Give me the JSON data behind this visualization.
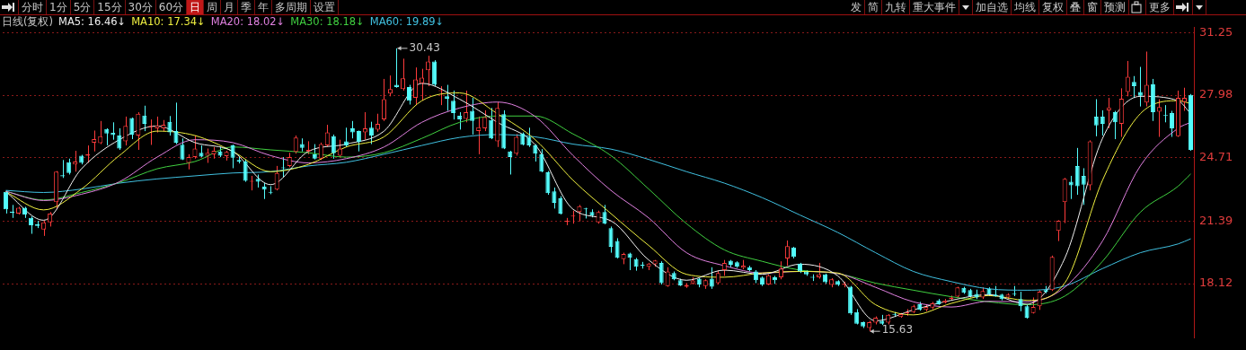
{
  "chart_data": {
    "type": "candlestick",
    "title": "日线(复权)",
    "categories": [
      null,
      null,
      null,
      null,
      null,
      null,
      null,
      null,
      null,
      null,
      null,
      null,
      null,
      null,
      null,
      null,
      null,
      null,
      null,
      null,
      null,
      null,
      null,
      null,
      null,
      null,
      null,
      null,
      null,
      null,
      null,
      null,
      null,
      null,
      null,
      null,
      null,
      null,
      null,
      null,
      null,
      null,
      null,
      null,
      null,
      null,
      null,
      null,
      null,
      null,
      null,
      null,
      null,
      null,
      null,
      null,
      null,
      null,
      null,
      null,
      null,
      null,
      null,
      null,
      null,
      null,
      null,
      null,
      null,
      null,
      null,
      null,
      null,
      null,
      null,
      null,
      null,
      null,
      null,
      null,
      null,
      null,
      null,
      null,
      null,
      null,
      null,
      null,
      null,
      null,
      null,
      null,
      null,
      null,
      null,
      null,
      null,
      null,
      null,
      null,
      null,
      null,
      null,
      null,
      null,
      null,
      null,
      null,
      null,
      null,
      null,
      null,
      null,
      null,
      null,
      null,
      null,
      null,
      null,
      null,
      null,
      null,
      null,
      null,
      null,
      null,
      null,
      null,
      null,
      null,
      null,
      null,
      null,
      null,
      null,
      null,
      null,
      null,
      null,
      null,
      null,
      null,
      null,
      null,
      null,
      null,
      null,
      null,
      null,
      null,
      null,
      null,
      null,
      null,
      null,
      null,
      null,
      null,
      null,
      null,
      null,
      null,
      null,
      null,
      null,
      null,
      null,
      null,
      null,
      null,
      null,
      null,
      null,
      null,
      null,
      null,
      null,
      null,
      null,
      null,
      null,
      null,
      null,
      null,
      null,
      null,
      null,
      null,
      null
    ],
    "ohlc": [
      [
        22.92,
        23.0,
        21.79,
        22.01
      ],
      [
        21.89,
        22.24,
        21.56,
        21.83
      ],
      [
        21.79,
        22.14,
        21.74,
        22.09
      ],
      [
        22.09,
        22.14,
        21.56,
        21.74
      ],
      [
        21.56,
        21.64,
        20.73,
        21.18
      ],
      [
        21.23,
        21.41,
        21.03,
        21.14
      ],
      [
        20.95,
        21.41,
        20.62,
        21.33
      ],
      [
        21.33,
        21.87,
        21.11,
        21.79
      ],
      [
        22.39,
        24.01,
        22.01,
        23.98
      ],
      [
        23.79,
        24.59,
        23.65,
        23.73
      ],
      [
        24.47,
        24.66,
        23.83,
        23.91
      ],
      [
        24.36,
        25.07,
        23.98,
        24.51
      ],
      [
        24.82,
        24.86,
        24.36,
        24.44
      ],
      [
        24.82,
        25.35,
        24.44,
        24.89
      ],
      [
        25.5,
        26.13,
        25.04,
        25.68
      ],
      [
        25.47,
        26.63,
        25.42,
        25.83
      ],
      [
        26.21,
        26.25,
        25.35,
        25.98
      ],
      [
        26.01,
        26.56,
        25.65,
        25.89
      ],
      [
        25.87,
        26.25,
        25.12,
        25.19
      ],
      [
        25.57,
        26.86,
        25.35,
        26.37
      ],
      [
        26.78,
        26.81,
        25.68,
        25.92
      ],
      [
        25.87,
        27.09,
        25.12,
        27.01
      ],
      [
        26.92,
        27.43,
        26.1,
        26.48
      ],
      [
        26.31,
        26.71,
        25.38,
        26.37
      ],
      [
        26.25,
        26.86,
        26.03,
        26.4
      ],
      [
        26.25,
        26.68,
        26.1,
        26.43
      ],
      [
        26.59,
        26.89,
        25.87,
        26.03
      ],
      [
        26.1,
        27.59,
        25.42,
        25.5
      ],
      [
        25.39,
        25.72,
        24.59,
        24.62
      ],
      [
        24.44,
        24.89,
        24.1,
        24.74
      ],
      [
        24.74,
        25.87,
        24.66,
        25.19
      ],
      [
        24.97,
        25.35,
        24.74,
        24.77
      ],
      [
        24.82,
        25.19,
        24.44,
        24.97
      ],
      [
        24.89,
        25.27,
        24.66,
        25.07
      ],
      [
        25.04,
        25.27,
        24.74,
        24.82
      ],
      [
        24.79,
        25.07,
        24.56,
        25.01
      ],
      [
        25.35,
        25.39,
        24.16,
        24.71
      ],
      [
        24.59,
        24.74,
        24.41,
        24.51
      ],
      [
        24.51,
        24.62,
        23.45,
        23.5
      ],
      [
        23.45,
        23.76,
        23.0,
        23.5
      ],
      [
        23.6,
        23.83,
        23.15,
        23.45
      ],
      [
        23.2,
        23.38,
        22.55,
        23.04
      ],
      [
        22.92,
        23.22,
        22.8,
        22.88
      ],
      [
        23.04,
        24.28,
        23.0,
        23.91
      ],
      [
        24.21,
        24.74,
        23.68,
        24.16
      ],
      [
        24.28,
        24.97,
        24.21,
        24.74
      ],
      [
        25.01,
        25.87,
        24.92,
        25.77
      ],
      [
        25.42,
        25.72,
        25.04,
        25.22
      ],
      [
        25.04,
        25.57,
        24.89,
        25.12
      ],
      [
        24.89,
        25.42,
        24.62,
        24.66
      ],
      [
        24.66,
        25.5,
        24.59,
        25.42
      ],
      [
        25.35,
        26.43,
        25.27,
        26.03
      ],
      [
        25.83,
        25.92,
        24.66,
        24.94
      ],
      [
        24.82,
        25.65,
        24.74,
        25.19
      ],
      [
        25.57,
        26.28,
        25.27,
        25.35
      ],
      [
        26.25,
        26.63,
        25.72,
        26.03
      ],
      [
        26.1,
        26.13,
        25.04,
        25.53
      ],
      [
        26.03,
        27.09,
        25.65,
        26.25
      ],
      [
        26.28,
        26.59,
        25.42,
        25.87
      ],
      [
        26.18,
        27.01,
        26.07,
        26.48
      ],
      [
        26.71,
        28.83,
        26.63,
        27.77
      ],
      [
        28.07,
        29.01,
        27.92,
        28.3
      ],
      [
        28.52,
        30.43,
        28.37,
        28.4
      ],
      [
        28.3,
        29.89,
        28.22,
        28.86
      ],
      [
        28.4,
        28.52,
        27.49,
        27.69
      ],
      [
        27.84,
        29.43,
        27.46,
        28.8
      ],
      [
        28.6,
        29.36,
        27.69,
        28.9
      ],
      [
        29.28,
        30.04,
        28.45,
        29.74
      ],
      [
        29.74,
        29.81,
        28.45,
        28.52
      ],
      [
        28.19,
        28.45,
        27.46,
        28.22
      ],
      [
        27.92,
        28.52,
        27.16,
        27.8
      ],
      [
        27.69,
        28.22,
        26.71,
        27.04
      ],
      [
        26.9,
        27.09,
        26.18,
        26.71
      ],
      [
        26.74,
        28.22,
        26.56,
        27.09
      ],
      [
        27.16,
        27.84,
        25.92,
        26.63
      ],
      [
        26.1,
        26.86,
        24.89,
        26.3
      ],
      [
        26.25,
        27.19,
        26.1,
        26.83
      ],
      [
        26.68,
        27.31,
        25.68,
        25.72
      ],
      [
        25.57,
        27.62,
        25.27,
        27.31
      ],
      [
        26.98,
        27.19,
        25.16,
        25.19
      ],
      [
        25.04,
        25.07,
        23.83,
        24.74
      ],
      [
        24.92,
        25.95,
        24.82,
        25.8
      ],
      [
        25.98,
        26.03,
        25.35,
        25.39
      ],
      [
        25.8,
        26.28,
        25.27,
        25.35
      ],
      [
        25.35,
        25.42,
        24.51,
        24.92
      ],
      [
        24.89,
        25.16,
        23.95,
        23.98
      ],
      [
        23.95,
        24.01,
        22.77,
        22.85
      ],
      [
        22.95,
        23.15,
        22.05,
        22.35
      ],
      [
        22.59,
        22.7,
        21.74,
        21.79
      ],
      [
        21.35,
        21.56,
        21.18,
        21.41
      ],
      [
        21.64,
        21.94,
        21.26,
        21.68
      ],
      [
        21.87,
        22.24,
        21.38,
        22.17
      ],
      [
        22.06,
        22.09,
        21.53,
        22.01
      ],
      [
        21.87,
        22.01,
        21.59,
        21.68
      ],
      [
        21.33,
        21.94,
        21.26,
        21.87
      ],
      [
        21.87,
        22.24,
        21.23,
        21.26
      ],
      [
        21.03,
        21.11,
        19.74,
        20.05
      ],
      [
        20.35,
        20.5,
        19.44,
        19.47
      ],
      [
        19.41,
        19.74,
        19.14,
        19.67
      ],
      [
        19.7,
        19.74,
        18.83,
        19.47
      ],
      [
        19.41,
        19.47,
        18.8,
        19.01
      ],
      [
        19.11,
        19.26,
        18.91,
        19.05
      ],
      [
        19.01,
        19.21,
        18.83,
        19.17
      ],
      [
        19.14,
        19.36,
        19.01,
        19.33
      ],
      [
        19.21,
        19.29,
        18.08,
        18.15
      ],
      [
        18.0,
        18.98,
        17.96,
        18.76
      ],
      [
        18.68,
        18.76,
        18.3,
        18.35
      ],
      [
        18.3,
        18.38,
        18.0,
        18.03
      ],
      [
        17.96,
        18.15,
        17.9,
        18.05
      ],
      [
        18.14,
        18.46,
        18.08,
        18.29
      ],
      [
        18.38,
        18.41,
        17.93,
        18.08
      ],
      [
        18.0,
        18.35,
        17.85,
        18.3
      ],
      [
        18.38,
        18.98,
        17.85,
        17.96
      ],
      [
        18.15,
        18.8,
        18.08,
        18.68
      ],
      [
        18.83,
        19.36,
        18.53,
        19.21
      ],
      [
        19.32,
        19.36,
        18.98,
        19.11
      ],
      [
        19.24,
        19.29,
        18.95,
        19.01
      ],
      [
        18.95,
        19.36,
        18.87,
        19.06
      ],
      [
        18.98,
        19.06,
        18.76,
        18.83
      ],
      [
        18.76,
        18.83,
        18.15,
        18.3
      ],
      [
        18.44,
        18.5,
        18.0,
        18.08
      ],
      [
        18.08,
        18.61,
        18.05,
        18.56
      ],
      [
        18.46,
        18.53,
        18.11,
        18.3
      ],
      [
        18.46,
        19.29,
        18.35,
        18.91
      ],
      [
        19.44,
        20.38,
        19.06,
        20.08
      ],
      [
        20.02,
        20.05,
        19.44,
        19.52
      ],
      [
        19.17,
        19.21,
        18.68,
        18.76
      ],
      [
        18.76,
        18.83,
        18.53,
        18.61
      ],
      [
        18.46,
        18.61,
        18.26,
        18.43
      ],
      [
        18.46,
        19.21,
        18.38,
        18.61
      ],
      [
        18.61,
        18.65,
        18.11,
        18.2
      ],
      [
        18.05,
        18.41,
        17.93,
        18.35
      ],
      [
        18.26,
        18.3,
        18.0,
        18.05
      ],
      [
        18.05,
        18.23,
        17.93,
        18.11
      ],
      [
        17.96,
        18.0,
        16.49,
        16.56
      ],
      [
        16.64,
        16.79,
        15.99,
        16.03
      ],
      [
        16.11,
        16.14,
        15.8,
        15.88
      ],
      [
        15.8,
        16.18,
        15.63,
        16.11
      ],
      [
        16.08,
        16.41,
        15.99,
        16.34
      ],
      [
        16.18,
        16.49,
        15.96,
        16.03
      ],
      [
        16.08,
        16.53,
        15.99,
        16.49
      ],
      [
        16.53,
        16.64,
        16.38,
        16.49
      ],
      [
        16.38,
        16.59,
        16.34,
        16.53
      ],
      [
        16.56,
        16.79,
        16.44,
        16.64
      ],
      [
        16.64,
        17.02,
        16.59,
        16.94
      ],
      [
        17.05,
        17.17,
        16.71,
        16.75
      ],
      [
        16.75,
        17.02,
        16.68,
        16.9
      ],
      [
        16.87,
        17.17,
        16.79,
        17.09
      ],
      [
        17.25,
        17.32,
        17.02,
        17.05
      ],
      [
        17.14,
        17.32,
        17.09,
        17.25
      ],
      [
        17.32,
        17.5,
        17.25,
        17.4
      ],
      [
        17.44,
        17.96,
        17.4,
        17.93
      ],
      [
        17.9,
        17.96,
        17.59,
        17.65
      ],
      [
        17.78,
        17.85,
        17.4,
        17.47
      ],
      [
        17.59,
        17.81,
        17.32,
        17.4
      ],
      [
        17.4,
        17.93,
        17.32,
        17.74
      ],
      [
        17.85,
        17.93,
        17.47,
        17.55
      ],
      [
        17.55,
        18.0,
        17.44,
        17.47
      ],
      [
        17.55,
        17.59,
        17.25,
        17.32
      ],
      [
        17.4,
        17.62,
        17.32,
        17.55
      ],
      [
        17.59,
        18.0,
        17.47,
        17.55
      ],
      [
        17.32,
        17.7,
        16.68,
        16.94
      ],
      [
        16.94,
        17.02,
        16.29,
        16.34
      ],
      [
        16.59,
        17.4,
        16.56,
        16.9
      ],
      [
        16.94,
        17.78,
        16.75,
        17.7
      ],
      [
        17.78,
        18.0,
        17.62,
        17.7
      ],
      [
        17.78,
        19.59,
        17.74,
        19.52
      ],
      [
        20.88,
        21.44,
        20.35,
        21.41
      ],
      [
        22.39,
        23.65,
        21.29,
        23.6
      ],
      [
        23.45,
        23.76,
        22.55,
        23.26
      ],
      [
        24.28,
        25.22,
        22.77,
        23.22
      ],
      [
        23.76,
        24.16,
        22.24,
        23.3
      ],
      [
        23.26,
        25.62,
        23.0,
        25.57
      ],
      [
        26.86,
        27.77,
        25.83,
        26.4
      ],
      [
        26.86,
        27.19,
        25.87,
        26.48
      ],
      [
        27.19,
        27.84,
        26.25,
        27.34
      ],
      [
        27.09,
        27.16,
        25.68,
        26.56
      ],
      [
        26.48,
        28.34,
        25.8,
        27.8
      ],
      [
        28.15,
        29.77,
        27.92,
        28.95
      ],
      [
        28.68,
        28.98,
        27.84,
        28.45
      ],
      [
        28.15,
        29.46,
        27.39,
        27.95
      ],
      [
        27.59,
        30.26,
        27.39,
        28.52
      ],
      [
        28.55,
        28.83,
        26.63,
        27.09
      ],
      [
        27.12,
        27.77,
        25.8,
        27.36
      ],
      [
        26.93,
        27.46,
        26.56,
        26.89
      ],
      [
        27.04,
        27.16,
        25.8,
        26.25
      ],
      [
        25.83,
        28.22,
        25.8,
        27.84
      ],
      [
        27.62,
        28.37,
        27.16,
        27.84
      ],
      [
        28.0,
        28.04,
        25.07,
        25.12
      ]
    ],
    "series": [
      {
        "name": "MA5: 16.46↓",
        "color": "#f0f0f0",
        "type": "line",
        "values": [
          22.92,
          null,
          null,
          null,
          null,
          null,
          21.44,
          null,
          null,
          null,
          null,
          null,
          24.13,
          null,
          null,
          null,
          null,
          null,
          25.65,
          null,
          null,
          null,
          null,
          null,
          26.37,
          null,
          null,
          null,
          null,
          null,
          25.5,
          null,
          null,
          null,
          null,
          null,
          25.04,
          null,
          null,
          null,
          null,
          null,
          23.3,
          null,
          null,
          null,
          null,
          null,
          25.04,
          null,
          null,
          null,
          null,
          null,
          25.42,
          null,
          null,
          null,
          null,
          null,
          26.1,
          null,
          null,
          null,
          null,
          null,
          28.6,
          null,
          null,
          null,
          null,
          null,
          27.77,
          null,
          null,
          null,
          null,
          null,
          26.56,
          null,
          null,
          null,
          null,
          null,
          25.38,
          null,
          null,
          null,
          null,
          null,
          22.01,
          null,
          null,
          null,
          null,
          null,
          21.41,
          null,
          null,
          null,
          null,
          null,
          19.36,
          null,
          null,
          null,
          null,
          null,
          18.3,
          null,
          null,
          null,
          null,
          null,
          18.83,
          null,
          null,
          null,
          null,
          null,
          18.61,
          null,
          null,
          null,
          null,
          null,
          19.14,
          null,
          null,
          null,
          null,
          null,
          18.53,
          null,
          null,
          null,
          null,
          null,
          16.18,
          null,
          null,
          null,
          null,
          null,
          16.75,
          null,
          null,
          null,
          null,
          null,
          17.25,
          null,
          null,
          null,
          null,
          null,
          17.55,
          null,
          null,
          null,
          null,
          null,
          17.05,
          null,
          null,
          null,
          null,
          null,
          19.44,
          null,
          null,
          null,
          null,
          null,
          25.72,
          null,
          null,
          null,
          null,
          null,
          27.92,
          null,
          null,
          null,
          null,
          null,
          27.69,
          null,
          27.01
        ]
      },
      {
        "name": "MA10: 17.34↓",
        "color": "#f0f040",
        "type": "line",
        "values": [
          22.92,
          null,
          null,
          null,
          null,
          null,
          21.98,
          null,
          null,
          null,
          null,
          null,
          23.07,
          null,
          null,
          null,
          null,
          null,
          24.82,
          null,
          null,
          null,
          null,
          null,
          26.1,
          null,
          null,
          null,
          null,
          null,
          25.87,
          null,
          null,
          null,
          null,
          null,
          25.04,
          null,
          null,
          null,
          null,
          null,
          23.98,
          null,
          null,
          null,
          null,
          null,
          24.36,
          null,
          null,
          null,
          null,
          null,
          25.27,
          null,
          null,
          null,
          null,
          null,
          25.8,
          null,
          null,
          null,
          null,
          null,
          27.69,
          null,
          null,
          null,
          null,
          null,
          28.1,
          null,
          null,
          null,
          null,
          null,
          27.01,
          null,
          null,
          null,
          null,
          null,
          25.65,
          null,
          null,
          null,
          null,
          null,
          23.53,
          null,
          null,
          null,
          null,
          null,
          21.79,
          null,
          null,
          null,
          null,
          null,
          20.12,
          null,
          null,
          null,
          null,
          null,
          18.61,
          null,
          null,
          null,
          null,
          null,
          18.46,
          null,
          null,
          null,
          null,
          null,
          18.68,
          null,
          null,
          null,
          null,
          null,
          18.76,
          null,
          null,
          null,
          null,
          null,
          18.68,
          null,
          null,
          null,
          null,
          null,
          17.02,
          null,
          null,
          null,
          null,
          null,
          16.49,
          null,
          null,
          null,
          null,
          null,
          17.09,
          null,
          null,
          null,
          null,
          null,
          17.5,
          null,
          null,
          null,
          null,
          null,
          17.25,
          null,
          null,
          null,
          null,
          null,
          18.15,
          null,
          null,
          null,
          null,
          null,
          23.53,
          null,
          null,
          null,
          null,
          null,
          27.01,
          null,
          null,
          null,
          null,
          null,
          27.69,
          null,
          27.54
        ]
      },
      {
        "name": "MA20: 18.02↓",
        "color": "#e080e0",
        "type": "line",
        "values": [
          22.95,
          null,
          null,
          null,
          null,
          null,
          22.47,
          null,
          null,
          null,
          null,
          null,
          22.8,
          null,
          null,
          null,
          null,
          null,
          23.45,
          null,
          null,
          null,
          null,
          null,
          24.74,
          null,
          null,
          null,
          null,
          null,
          25.65,
          null,
          null,
          null,
          null,
          null,
          25.5,
          null,
          null,
          null,
          null,
          null,
          24.82,
          null,
          null,
          null,
          null,
          null,
          24.44,
          null,
          null,
          null,
          null,
          null,
          24.66,
          null,
          null,
          null,
          null,
          null,
          25.27,
          null,
          null,
          null,
          null,
          null,
          26.56,
          null,
          null,
          null,
          null,
          null,
          27.31,
          null,
          null,
          null,
          null,
          null,
          27.62,
          null,
          null,
          null,
          null,
          null,
          26.86,
          null,
          null,
          null,
          null,
          null,
          24.82,
          null,
          null,
          null,
          null,
          null,
          23.0,
          null,
          null,
          null,
          null,
          null,
          21.56,
          null,
          null,
          null,
          null,
          null,
          19.74,
          null,
          null,
          null,
          null,
          null,
          19.06,
          null,
          null,
          null,
          null,
          null,
          18.68,
          null,
          null,
          null,
          null,
          null,
          18.76,
          null,
          null,
          null,
          null,
          null,
          18.65,
          null,
          null,
          null,
          null,
          null,
          17.93,
          null,
          null,
          null,
          null,
          null,
          17.17,
          null,
          null,
          null,
          null,
          null,
          16.9,
          null,
          null,
          null,
          null,
          null,
          17.2,
          null,
          null,
          null,
          null,
          null,
          17.17,
          null,
          null,
          null,
          null,
          null,
          17.93,
          null,
          null,
          null,
          null,
          null,
          20.35,
          null,
          null,
          null,
          null,
          null,
          24.28,
          null,
          null,
          null,
          null,
          null,
          26.25,
          null,
          26.56
        ]
      },
      {
        "name": "MA30: 18.18↓",
        "color": "#40d040",
        "type": "line",
        "values": [
          22.95,
          null,
          null,
          null,
          null,
          null,
          22.5,
          null,
          null,
          null,
          null,
          null,
          22.89,
          null,
          null,
          null,
          null,
          null,
          23.41,
          null,
          null,
          null,
          null,
          null,
          24.13,
          null,
          null,
          null,
          null,
          null,
          24.51,
          null,
          null,
          null,
          null,
          null,
          25.27,
          null,
          null,
          null,
          null,
          null,
          25.12,
          null,
          null,
          null,
          null,
          null,
          24.97,
          null,
          null,
          null,
          null,
          null,
          24.74,
          null,
          null,
          null,
          null,
          null,
          24.97,
          null,
          null,
          null,
          null,
          null,
          25.72,
          null,
          null,
          null,
          null,
          null,
          26.56,
          null,
          null,
          null,
          null,
          null,
          26.89,
          null,
          null,
          null,
          null,
          null,
          26.89,
          null,
          null,
          null,
          null,
          null,
          25.95,
          null,
          null,
          null,
          null,
          null,
          24.82,
          null,
          null,
          null,
          null,
          null,
          23.07,
          null,
          null,
          null,
          null,
          null,
          21.26,
          null,
          null,
          null,
          null,
          null,
          19.89,
          null,
          null,
          null,
          null,
          null,
          19.29,
          null,
          null,
          null,
          null,
          null,
          18.83,
          null,
          null,
          null,
          null,
          null,
          18.65,
          null,
          null,
          null,
          null,
          null,
          18.15,
          null,
          null,
          null,
          null,
          null,
          17.78,
          null,
          null,
          null,
          null,
          null,
          17.44,
          null,
          null,
          null,
          null,
          null,
          17.17,
          null,
          null,
          null,
          null,
          null,
          17.02,
          null,
          null,
          null,
          null,
          null,
          17.47,
          null,
          null,
          null,
          null,
          null,
          19.29,
          null,
          null,
          null,
          null,
          null,
          21.86,
          null,
          null,
          null,
          null,
          null,
          23.22,
          null,
          23.86
        ]
      },
      {
        "name": "MA60: 19.89↓",
        "color": "#40c0e0",
        "type": "line",
        "values": [
          23.0,
          null,
          null,
          null,
          null,
          null,
          22.89,
          null,
          null,
          null,
          null,
          null,
          23.07,
          null,
          null,
          null,
          null,
          null,
          23.38,
          null,
          null,
          null,
          null,
          null,
          23.6,
          null,
          null,
          null,
          null,
          null,
          23.76,
          null,
          null,
          null,
          null,
          null,
          23.91,
          null,
          null,
          null,
          null,
          null,
          23.98,
          null,
          null,
          null,
          null,
          null,
          24.28,
          null,
          null,
          null,
          null,
          null,
          24.47,
          null,
          null,
          null,
          null,
          null,
          24.89,
          null,
          null,
          null,
          null,
          null,
          25.35,
          null,
          null,
          null,
          null,
          null,
          25.77,
          null,
          null,
          null,
          null,
          null,
          25.92,
          null,
          null,
          null,
          null,
          null,
          25.8,
          null,
          null,
          null,
          null,
          null,
          25.42,
          null,
          null,
          null,
          null,
          null,
          25.16,
          null,
          null,
          null,
          null,
          null,
          24.62,
          null,
          null,
          null,
          null,
          null,
          23.98,
          null,
          null,
          null,
          null,
          null,
          23.38,
          null,
          null,
          null,
          null,
          null,
          22.62,
          null,
          null,
          null,
          null,
          null,
          21.71,
          null,
          null,
          null,
          null,
          null,
          20.8,
          null,
          null,
          null,
          null,
          null,
          19.74,
          null,
          null,
          null,
          null,
          null,
          18.76,
          null,
          null,
          null,
          null,
          null,
          18.23,
          null,
          null,
          null,
          null,
          null,
          17.85,
          null,
          null,
          null,
          null,
          null,
          17.78,
          null,
          null,
          null,
          null,
          null,
          18.0,
          null,
          null,
          null,
          null,
          null,
          18.91,
          null,
          null,
          null,
          null,
          null,
          19.74,
          null,
          null,
          null,
          null,
          null,
          20.2,
          null,
          20.47
        ]
      }
    ],
    "ylim": [
      15.3,
      31.55
    ],
    "yticks": [
      18.12,
      21.39,
      24.71,
      27.98,
      31.25
    ],
    "grid": "y",
    "legend": "top left",
    "tick_labels": "y",
    "marker": "none",
    "annotations": [
      "分时",
      "1分",
      "5分",
      "15分",
      "30分",
      "60分",
      "日",
      "周",
      "月",
      "季",
      "年",
      "多周期",
      "设置",
      "发",
      "简",
      "九转",
      "重大事件",
      "加自选",
      "均线",
      "复权",
      "叠",
      "窗",
      "预测",
      "更多",
      "30.43",
      "15.63"
    ]
  }
}
